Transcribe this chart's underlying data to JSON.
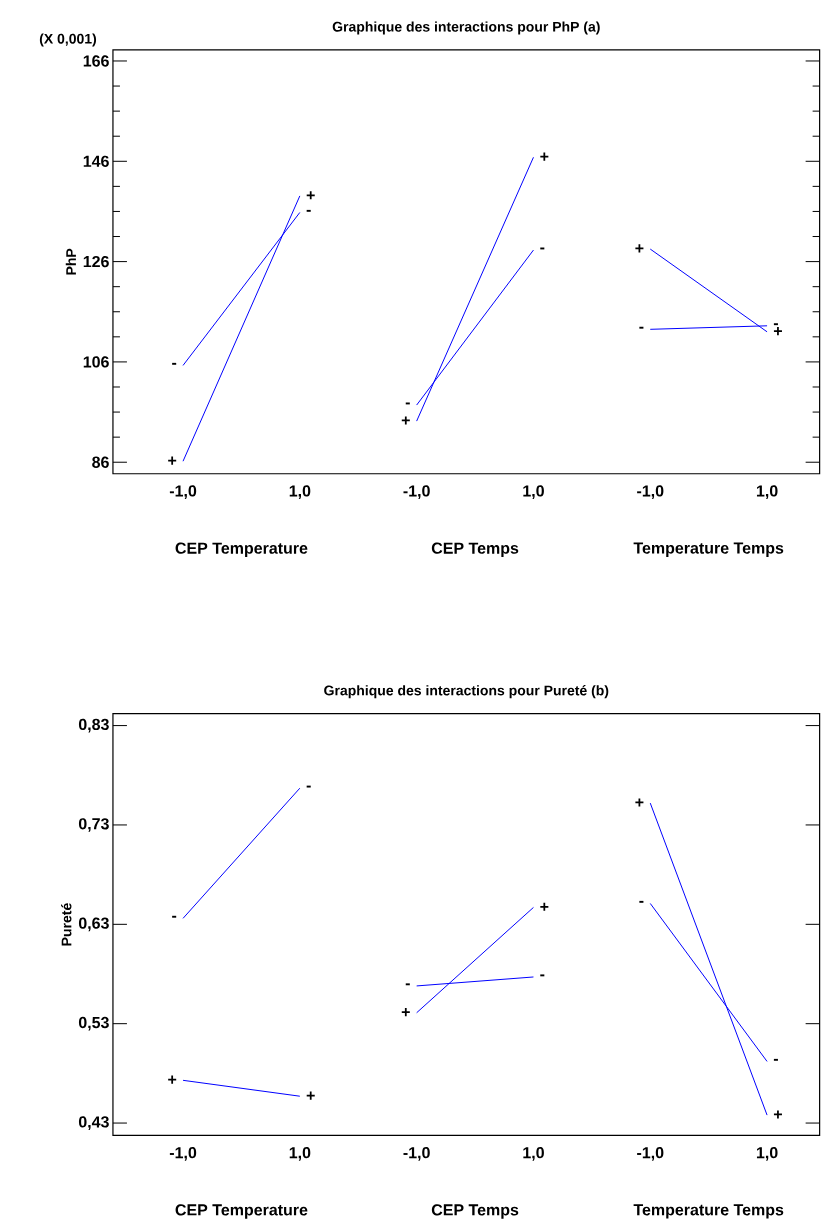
{
  "chart_data": [
    {
      "type": "line",
      "title": "Graphique des interactions pour PhP (a)",
      "ylabel": "PhP",
      "categories": [
        "-1,0",
        "1,0",
        "-1,0",
        "1,0",
        "-1,0",
        "1,0"
      ],
      "series": [
        {
          "name": "-",
          "color": "#0000ff",
          "values": [
            105.3,
            135.8,
            null,
            null,
            null,
            null
          ]
        },
        {
          "name": "+",
          "color": "#0000ff",
          "values": [
            86.2,
            139.1,
            null,
            null,
            null,
            null
          ]
        },
        {
          "name": "-",
          "color": "#0000ff",
          "values": [
            null,
            null,
            97.4,
            128.3,
            null,
            null
          ]
        },
        {
          "name": "+",
          "color": "#0000ff",
          "values": [
            null,
            null,
            94.2,
            146.8,
            null,
            null
          ]
        },
        {
          "name": "+",
          "color": "#0000ff",
          "values": [
            null,
            null,
            null,
            null,
            128.5,
            112.0
          ]
        },
        {
          "name": "-",
          "color": "#0000ff",
          "values": [
            null,
            null,
            null,
            null,
            112.5,
            113.2
          ]
        }
      ],
      "ylim": [
        83.7,
        168.2
      ],
      "yticks": [
        86,
        {
          "value": 91,
          "label": null
        },
        {
          "value": 96,
          "label": null
        },
        {
          "value": 101,
          "label": null
        },
        106,
        {
          "value": 111,
          "label": null
        },
        {
          "value": 116,
          "label": null
        },
        {
          "value": 121,
          "label": null
        },
        126,
        {
          "value": 131,
          "label": null
        },
        {
          "value": 136,
          "label": null
        },
        {
          "value": 141,
          "label": null
        },
        146,
        {
          "value": 151,
          "label": null
        },
        {
          "value": 156,
          "label": null
        },
        {
          "value": 161,
          "label": null
        },
        166
      ],
      "annotations": [
        "(X 0,001)",
        "CEP Temperature",
        "CEP Temps",
        "Temperature Temps"
      ]
    },
    {
      "type": "line",
      "title": "Graphique des interactions pour Pureté (b)",
      "ylabel": "Pureté",
      "categories": [
        "-1,0",
        "1,0",
        "-1,0",
        "1,0",
        "-1,0",
        "1,0"
      ],
      "series": [
        {
          "name": "-",
          "color": "#0000ff",
          "values": [
            0.636,
            0.767,
            null,
            null,
            null,
            null
          ]
        },
        {
          "name": "+",
          "color": "#0000ff",
          "values": [
            0.473,
            0.457,
            null,
            null,
            null,
            null
          ]
        },
        {
          "name": "-",
          "color": "#0000ff",
          "values": [
            null,
            null,
            0.568,
            0.577,
            null,
            null
          ]
        },
        {
          "name": "+",
          "color": "#0000ff",
          "values": [
            null,
            null,
            0.541,
            0.647,
            null,
            null
          ]
        },
        {
          "name": "+",
          "color": "#0000ff",
          "values": [
            null,
            null,
            null,
            null,
            0.752,
            0.438
          ]
        },
        {
          "name": "-",
          "color": "#0000ff",
          "values": [
            null,
            null,
            null,
            null,
            0.651,
            0.492
          ]
        }
      ],
      "ylim": [
        0.4175,
        0.842
      ],
      "yticks": [
        {
          "value": 0.43,
          "label": "0,43"
        },
        {
          "value": 0.53,
          "label": "0,53"
        },
        {
          "value": 0.63,
          "label": "0,63"
        },
        {
          "value": 0.73,
          "label": "0,73"
        },
        {
          "value": 0.83,
          "label": "0,83"
        }
      ],
      "annotations": [
        "CEP Temperature",
        "CEP Temps",
        "Temperature Temps"
      ]
    }
  ]
}
